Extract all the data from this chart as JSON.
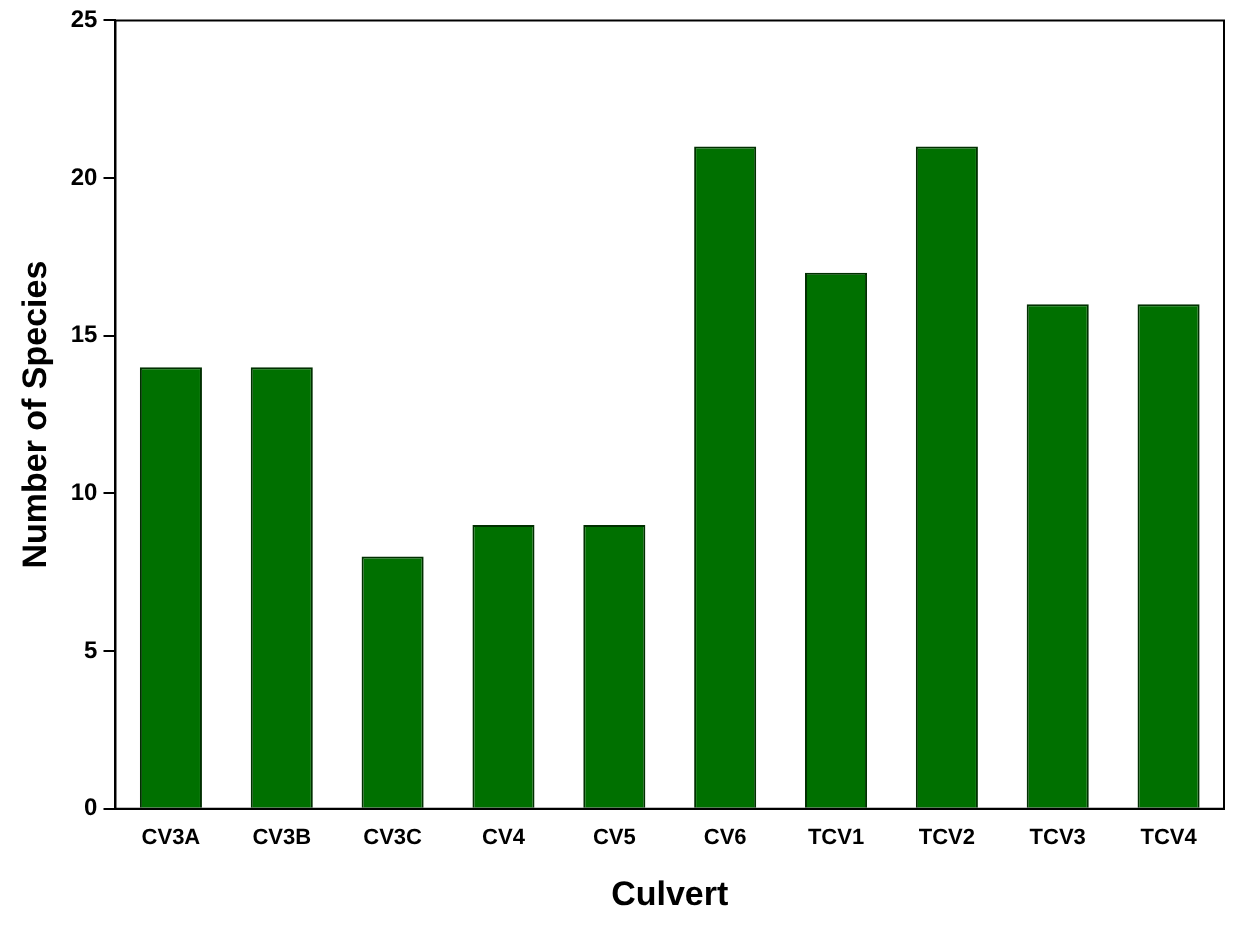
{
  "chart_data": {
    "type": "bar",
    "xlabel": "Culvert",
    "ylabel": "Number of Species",
    "categories": [
      "CV3A",
      "CV3B",
      "CV3C",
      "CV4",
      "CV5",
      "CV6",
      "TCV1",
      "TCV2",
      "TCV3",
      "TCV4"
    ],
    "values": [
      14,
      14,
      8,
      9,
      9,
      21,
      17,
      21,
      16,
      16
    ],
    "color": "#007000",
    "ylim": [
      0,
      25
    ],
    "yticks": [
      0,
      5,
      10,
      15,
      20,
      25
    ],
    "grid": false,
    "legend": false
  }
}
